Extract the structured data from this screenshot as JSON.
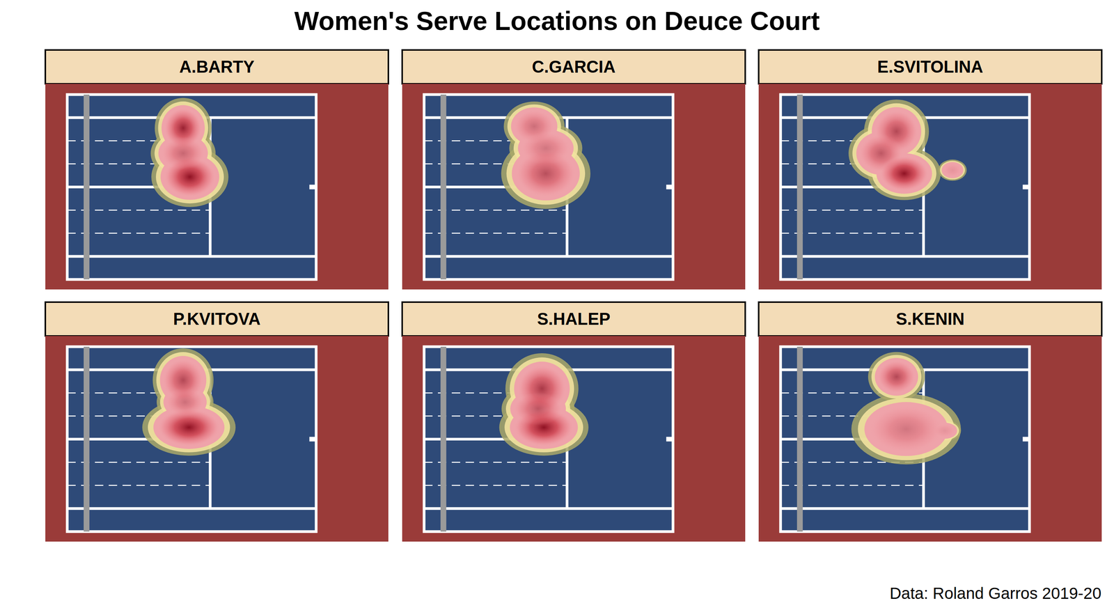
{
  "chart_data": {
    "type": "density",
    "title": "Women's Serve Locations on Deuce Court",
    "caption": "Data: Roland Garros 2019-20",
    "xlim": [
      -1,
      11.885
    ],
    "ylim": [
      -5.485,
      5.485
    ],
    "tick_labels": false,
    "grid": false,
    "panels": [
      {
        "name": "A.BARTY",
        "hotspots": [
          {
            "x": 5.0,
            "y": -3.5,
            "sx": 0.7,
            "sy": 0.85,
            "weight": 0.85
          },
          {
            "x": 5.35,
            "y": -0.6,
            "sx": 0.95,
            "sy": 0.85,
            "weight": 0.95
          },
          {
            "x": 5.0,
            "y": -2.0,
            "sx": 0.8,
            "sy": 0.7,
            "weight": 0.4
          }
        ]
      },
      {
        "name": "C.GARCIA",
        "hotspots": [
          {
            "x": 4.7,
            "y": -3.6,
            "sx": 0.75,
            "sy": 0.7,
            "weight": 0.35
          },
          {
            "x": 5.3,
            "y": -0.8,
            "sx": 1.1,
            "sy": 1.0,
            "weight": 0.55
          },
          {
            "x": 5.3,
            "y": -2.3,
            "sx": 0.9,
            "sy": 0.7,
            "weight": 0.3
          }
        ]
      },
      {
        "name": "E.SVITOLINA",
        "hotspots": [
          {
            "x": 5.0,
            "y": -3.3,
            "sx": 0.8,
            "sy": 0.9,
            "weight": 0.6
          },
          {
            "x": 4.2,
            "y": -2.0,
            "sx": 0.8,
            "sy": 0.8,
            "weight": 0.5
          },
          {
            "x": 5.4,
            "y": -0.8,
            "sx": 0.9,
            "sy": 0.75,
            "weight": 0.95
          },
          {
            "x": 7.9,
            "y": -1.0,
            "sx": 0.35,
            "sy": 0.3,
            "weight": 0.1
          }
        ]
      },
      {
        "name": "P.KVITOVA",
        "hotspots": [
          {
            "x": 5.0,
            "y": -3.5,
            "sx": 0.75,
            "sy": 0.9,
            "weight": 0.6
          },
          {
            "x": 5.3,
            "y": -0.7,
            "sx": 1.15,
            "sy": 0.8,
            "weight": 0.95
          },
          {
            "x": 5.1,
            "y": -2.2,
            "sx": 0.7,
            "sy": 0.6,
            "weight": 0.35
          }
        ]
      },
      {
        "name": "S.HALEP",
        "hotspots": [
          {
            "x": 5.1,
            "y": -3.0,
            "sx": 0.9,
            "sy": 1.0,
            "weight": 0.7
          },
          {
            "x": 5.2,
            "y": -0.7,
            "sx": 1.1,
            "sy": 0.8,
            "weight": 0.95
          },
          {
            "x": 4.9,
            "y": -1.8,
            "sx": 0.9,
            "sy": 0.7,
            "weight": 0.5
          }
        ]
      },
      {
        "name": "S.KENIN",
        "hotspots": [
          {
            "x": 5.0,
            "y": -3.7,
            "sx": 0.7,
            "sy": 0.7,
            "weight": 0.6
          },
          {
            "x": 5.5,
            "y": -0.6,
            "sx": 1.35,
            "sy": 1.0,
            "weight": 0.3
          },
          {
            "x": 7.5,
            "y": -0.5,
            "sx": 0.4,
            "sy": 0.3,
            "weight": 0.1
          }
        ]
      }
    ]
  }
}
